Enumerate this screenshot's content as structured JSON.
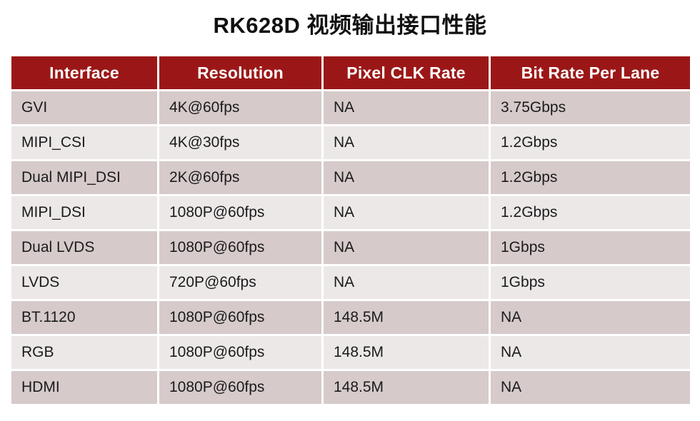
{
  "title": "RK628D 视频输出接口性能",
  "table": {
    "columns": [
      "Interface",
      "Resolution",
      "Pixel CLK Rate",
      "Bit Rate Per Lane"
    ],
    "rows": [
      [
        "GVI",
        "4K@60fps",
        "NA",
        "3.75Gbps"
      ],
      [
        "MIPI_CSI",
        "4K@30fps",
        "NA",
        "1.2Gbps"
      ],
      [
        "Dual MIPI_DSI",
        "2K@60fps",
        "NA",
        "1.2Gbps"
      ],
      [
        "MIPI_DSI",
        "1080P@60fps",
        "NA",
        "1.2Gbps"
      ],
      [
        "Dual LVDS",
        "1080P@60fps",
        "NA",
        "1Gbps"
      ],
      [
        "LVDS",
        "720P@60fps",
        "NA",
        "1Gbps"
      ],
      [
        "BT.1120",
        "1080P@60fps",
        "148.5M",
        "NA"
      ],
      [
        "RGB",
        "1080P@60fps",
        "148.5M",
        "NA"
      ],
      [
        "HDMI",
        "1080P@60fps",
        "148.5M",
        "NA"
      ]
    ]
  },
  "colors": {
    "header_bg": "#9B1717",
    "header_text": "#FFFFFF",
    "row_odd_bg": "#D6CACA",
    "row_even_bg": "#EDE8E8",
    "cell_text": "#1B1B1B"
  }
}
